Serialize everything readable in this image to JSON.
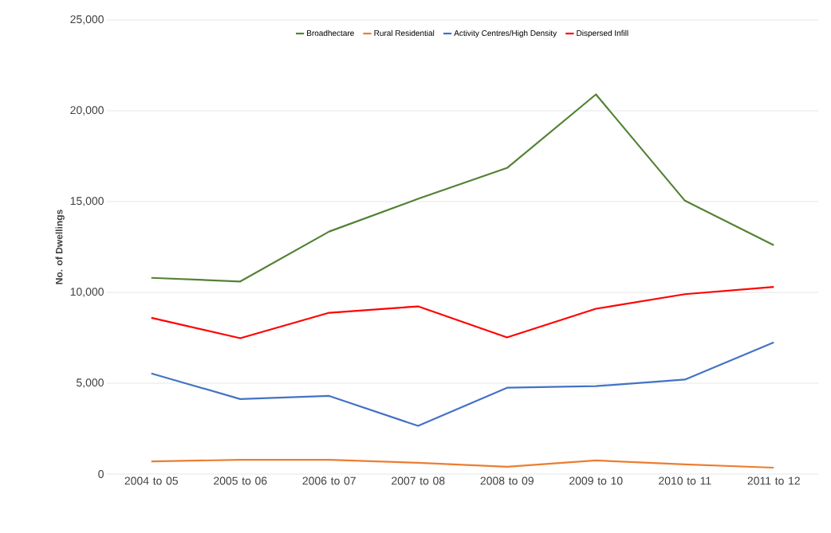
{
  "chart_data": {
    "type": "line",
    "ylabel": "No. of Dwellings",
    "categories": [
      "2004 to 05",
      "2005 to 06",
      "2006 to 07",
      "2007 to 08",
      "2008 to 09",
      "2009 to 10",
      "2010 to 11",
      "2011 to 12"
    ],
    "series": [
      {
        "name": "Broadhectare",
        "color": "#548235",
        "values": [
          10800,
          10600,
          13350,
          15150,
          16850,
          20900,
          15050,
          12600
        ]
      },
      {
        "name": "Rural Residential",
        "color": "#ed7d31",
        "values": [
          700,
          780,
          780,
          620,
          400,
          750,
          530,
          350
        ]
      },
      {
        "name": "Activity Centres/High Density",
        "color": "#4472c4",
        "values": [
          5540,
          4130,
          4300,
          2650,
          4750,
          4840,
          5200,
          7250
        ]
      },
      {
        "name": "Dispersed Infill",
        "color": "#ff0000",
        "values": [
          8600,
          7480,
          8880,
          9230,
          7520,
          9100,
          9900,
          10300
        ]
      }
    ],
    "ylim": [
      0,
      25000
    ],
    "yticks": [
      {
        "value": 0,
        "label": "0"
      },
      {
        "value": 5000,
        "label": "5,000"
      },
      {
        "value": 10000,
        "label": "10,000"
      },
      {
        "value": 15000,
        "label": "15,000"
      },
      {
        "value": 20000,
        "label": "20,000"
      },
      {
        "value": 25000,
        "label": "25,000"
      }
    ],
    "grid": "y",
    "legend": "top",
    "marker": "none",
    "line_style": "solid"
  }
}
